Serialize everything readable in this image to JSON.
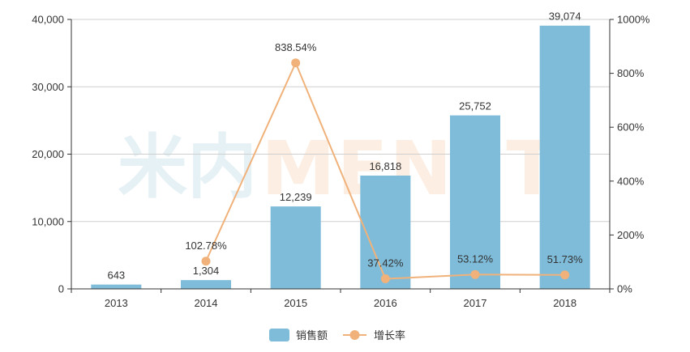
{
  "chart_data": {
    "type": "bar",
    "categories": [
      "2013",
      "2014",
      "2015",
      "2016",
      "2017",
      "2018"
    ],
    "series": [
      {
        "name": "销售额",
        "type": "bar",
        "axis": "left",
        "color": "#7ebcd9",
        "values": [
          643,
          1304,
          12239,
          16818,
          25752,
          39074
        ],
        "labels": [
          "643",
          "1,304",
          "12,239",
          "16,818",
          "25,752",
          "39,074"
        ]
      },
      {
        "name": "增长率",
        "type": "line",
        "axis": "right",
        "color": "#f0b27a",
        "values": [
          null,
          102.78,
          838.54,
          37.42,
          53.12,
          51.73
        ],
        "labels": [
          "",
          "102.78%",
          "838.54%",
          "37.42%",
          "53.12%",
          "51.73%"
        ]
      }
    ],
    "y_left": {
      "min": 0,
      "max": 40000,
      "ticks": [
        "0",
        "10,000",
        "20,000",
        "30,000",
        "40,000"
      ]
    },
    "y_right": {
      "min": 0,
      "max": 1000,
      "ticks": [
        "0%",
        "200%",
        "400%",
        "600%",
        "800%",
        "1000%"
      ]
    },
    "grid": true,
    "legend": "bottom-center"
  },
  "watermark": {
    "cn": "米内",
    "en": "MENET"
  }
}
